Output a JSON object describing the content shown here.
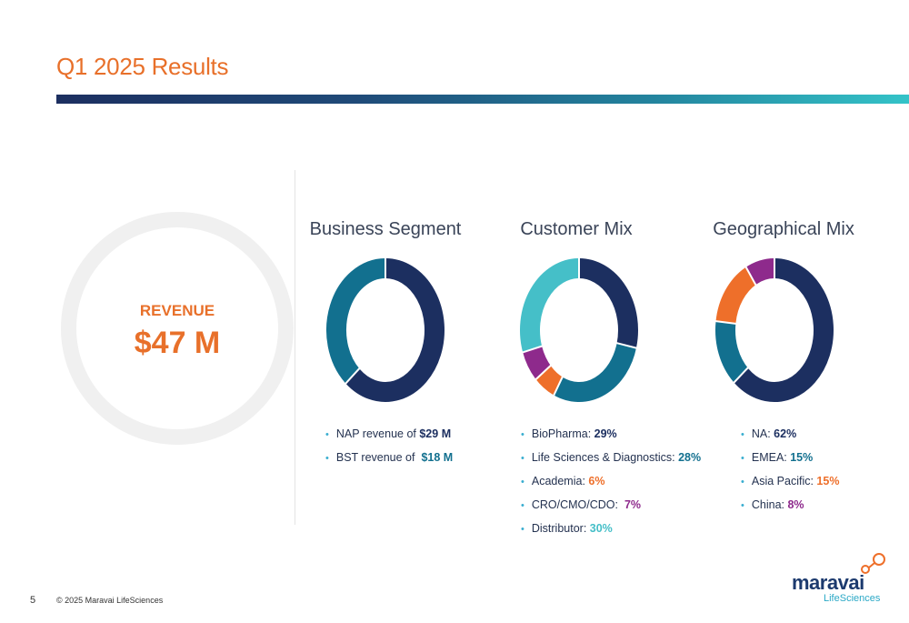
{
  "slide": {
    "title": "Q1 2025 Results",
    "page_number": "5",
    "copyright": "© 2025 Maravai LifeSciences",
    "logo": {
      "main": "maravai",
      "sub": "LifeSciences"
    }
  },
  "revenue": {
    "label": "REVENUE",
    "value": "$47 M"
  },
  "colors": {
    "navy": "#1c2f60",
    "teal": "#12708f",
    "orange": "#ee6f2a",
    "purple": "#8e2a8c",
    "aqua": "#45bfc8",
    "accent": "#e8702a"
  },
  "chart_data": [
    {
      "type": "pie",
      "title": "Business Segment",
      "categories": [
        "NAP",
        "BST"
      ],
      "values": [
        29,
        18
      ],
      "colors": [
        "#1c2f60",
        "#12708f"
      ],
      "bullets": [
        {
          "text": "NAP revenue of ",
          "value": "$29 M",
          "value_color": "#1c2f60"
        },
        {
          "text": "BST revenue of  ",
          "value": "$18 M",
          "value_color": "#12708f"
        }
      ]
    },
    {
      "type": "pie",
      "title": "Customer Mix",
      "categories": [
        "BioPharma",
        "Life Sciences & Diagnostics",
        "Academia",
        "CRO/CMO/CDO",
        "Distributor"
      ],
      "values": [
        29,
        28,
        6,
        7,
        30
      ],
      "colors": [
        "#1c2f60",
        "#12708f",
        "#ee6f2a",
        "#8e2a8c",
        "#45bfc8"
      ],
      "bullets": [
        {
          "text": "BioPharma: ",
          "value": "29%",
          "value_color": "#1c2f60"
        },
        {
          "text": "Life Sciences & Diagnostics: ",
          "value": "28%",
          "value_color": "#12708f"
        },
        {
          "text": "Academia: ",
          "value": "6%",
          "value_color": "#ee6f2a"
        },
        {
          "text": "CRO/CMO/CDO:  ",
          "value": "7%",
          "value_color": "#8e2a8c"
        },
        {
          "text": "Distributor: ",
          "value": "30%",
          "value_color": "#45bfc8"
        }
      ]
    },
    {
      "type": "pie",
      "title": "Geographical Mix",
      "categories": [
        "NA",
        "EMEA",
        "Asia Pacific",
        "China"
      ],
      "values": [
        62,
        15,
        15,
        8
      ],
      "colors": [
        "#1c2f60",
        "#12708f",
        "#ee6f2a",
        "#8e2a8c"
      ],
      "bullets": [
        {
          "text": "NA: ",
          "value": "62%",
          "value_color": "#1c2f60"
        },
        {
          "text": "EMEA: ",
          "value": "15%",
          "value_color": "#12708f"
        },
        {
          "text": "Asia Pacific: ",
          "value": "15%",
          "value_color": "#ee6f2a"
        },
        {
          "text": "China: ",
          "value": "8%",
          "value_color": "#8e2a8c"
        }
      ]
    }
  ]
}
